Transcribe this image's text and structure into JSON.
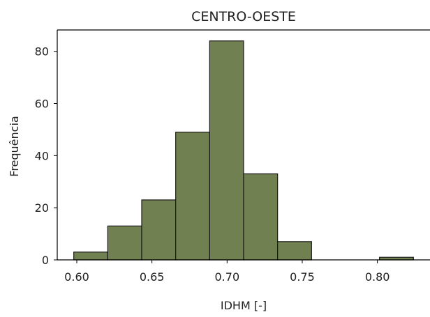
{
  "chart_data": {
    "type": "bar",
    "title": "CENTRO-OESTE",
    "xlabel": "IDHM [-]",
    "ylabel": "Frequência",
    "bins": [
      {
        "x0": 0.598,
        "x1": 0.6206,
        "count": 3
      },
      {
        "x0": 0.6206,
        "x1": 0.6432,
        "count": 13
      },
      {
        "x0": 0.6432,
        "x1": 0.6658,
        "count": 23
      },
      {
        "x0": 0.6658,
        "x1": 0.6884,
        "count": 49
      },
      {
        "x0": 0.6884,
        "x1": 0.711,
        "count": 84
      },
      {
        "x0": 0.711,
        "x1": 0.7336,
        "count": 33
      },
      {
        "x0": 0.7336,
        "x1": 0.7562,
        "count": 7
      },
      {
        "x0": 0.7562,
        "x1": 0.7788,
        "count": 0
      },
      {
        "x0": 0.7788,
        "x1": 0.8014,
        "count": 0
      },
      {
        "x0": 0.8014,
        "x1": 0.824,
        "count": 1
      }
    ],
    "xticks": [
      0.6,
      0.65,
      0.7,
      0.75,
      0.8
    ],
    "xtick_labels": [
      "0.60",
      "0.65",
      "0.70",
      "0.75",
      "0.80"
    ],
    "yticks": [
      0,
      20,
      40,
      60,
      80
    ],
    "yticks_labels": [
      "0",
      "20",
      "40",
      "60",
      "80"
    ],
    "xlim": [
      0.587,
      0.835
    ],
    "ylim": [
      0,
      88.2
    ],
    "bar_color": "#718050",
    "edge_color": "#1a1a1a",
    "grid": false,
    "legend": false
  }
}
